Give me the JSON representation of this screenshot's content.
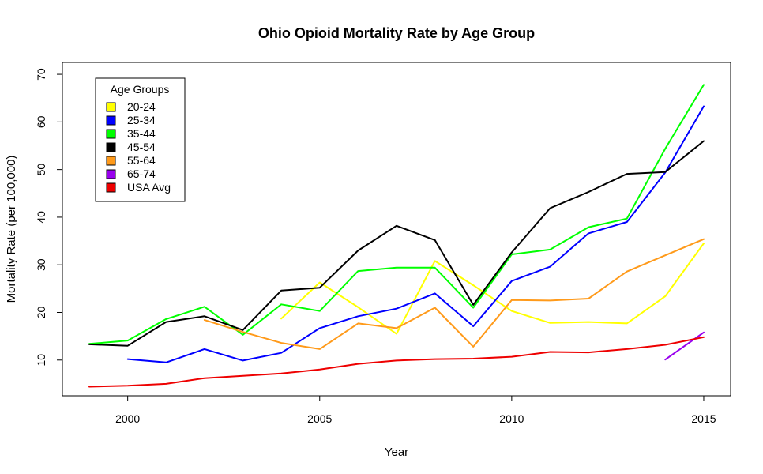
{
  "chart_data": {
    "type": "line",
    "title": "Ohio Opioid Mortality Rate by Age Group",
    "xlabel": "Year",
    "ylabel": "Mortality Rate (per 100,000)",
    "xlim": [
      1998.3,
      2015.7
    ],
    "ylim": [
      2.5,
      72.5
    ],
    "xticks": [
      2000,
      2005,
      2010,
      2015
    ],
    "yticks": [
      10,
      20,
      30,
      40,
      50,
      60,
      70
    ],
    "legend": {
      "title": "Age Groups",
      "position": "top-left"
    },
    "grid": false,
    "series": [
      {
        "name": "20-24",
        "color": "#ffff00",
        "x": [
          2004,
          2005,
          2006,
          2007,
          2008,
          2009,
          2010,
          2011,
          2012,
          2013,
          2014,
          2015
        ],
        "y": [
          18.7,
          26.3,
          21.1,
          15.5,
          30.8,
          25.7,
          20.3,
          17.8,
          18.0,
          17.7,
          23.4,
          34.5
        ]
      },
      {
        "name": "25-34",
        "color": "#0000ff",
        "x": [
          2000,
          2001,
          2002,
          2003,
          2004,
          2005,
          2006,
          2007,
          2008,
          2009,
          2010,
          2011,
          2012,
          2013,
          2014,
          2015
        ],
        "y": [
          10.2,
          9.5,
          12.3,
          9.9,
          11.5,
          16.7,
          19.2,
          20.8,
          24.0,
          17.1,
          26.6,
          29.6,
          36.6,
          39.0,
          49.4,
          63.3
        ]
      },
      {
        "name": "35-44",
        "color": "#00ff00",
        "x": [
          1999,
          2000,
          2001,
          2002,
          2003,
          2004,
          2005,
          2006,
          2007,
          2008,
          2009,
          2010,
          2011,
          2012,
          2013,
          2014,
          2015
        ],
        "y": [
          13.4,
          14.1,
          18.6,
          21.2,
          15.3,
          21.7,
          20.3,
          28.7,
          29.4,
          29.4,
          21.0,
          32.2,
          33.2,
          37.9,
          39.7,
          54.4,
          67.8
        ]
      },
      {
        "name": "45-54",
        "color": "#000000",
        "x": [
          1999,
          2000,
          2001,
          2002,
          2003,
          2004,
          2005,
          2006,
          2007,
          2008,
          2009,
          2010,
          2011,
          2012,
          2013,
          2014,
          2015
        ],
        "y": [
          13.3,
          13.0,
          18.0,
          19.2,
          16.3,
          24.6,
          25.2,
          33.0,
          38.2,
          35.2,
          21.6,
          32.6,
          41.9,
          45.3,
          49.1,
          49.5,
          56.0
        ]
      },
      {
        "name": "55-64",
        "color": "#ff9a1a",
        "x": [
          2002,
          2003,
          2004,
          2005,
          2006,
          2007,
          2008,
          2009,
          2010,
          2011,
          2012,
          2013,
          2014,
          2015
        ],
        "y": [
          18.4,
          15.9,
          13.6,
          12.3,
          17.7,
          16.7,
          21.0,
          12.8,
          22.6,
          22.5,
          22.9,
          28.6,
          32.0,
          35.4
        ]
      },
      {
        "name": "65-74",
        "color": "#9900ee",
        "x": [
          2014,
          2015
        ],
        "y": [
          10.1,
          15.8
        ]
      },
      {
        "name": "USA Avg",
        "color": "#ee0000",
        "x": [
          1999,
          2000,
          2001,
          2002,
          2003,
          2004,
          2005,
          2006,
          2007,
          2008,
          2009,
          2010,
          2011,
          2012,
          2013,
          2014,
          2015
        ],
        "y": [
          4.4,
          4.6,
          5.0,
          6.2,
          6.7,
          7.2,
          8.0,
          9.2,
          9.9,
          10.2,
          10.3,
          10.7,
          11.7,
          11.6,
          12.3,
          13.2,
          14.8
        ]
      }
    ]
  }
}
